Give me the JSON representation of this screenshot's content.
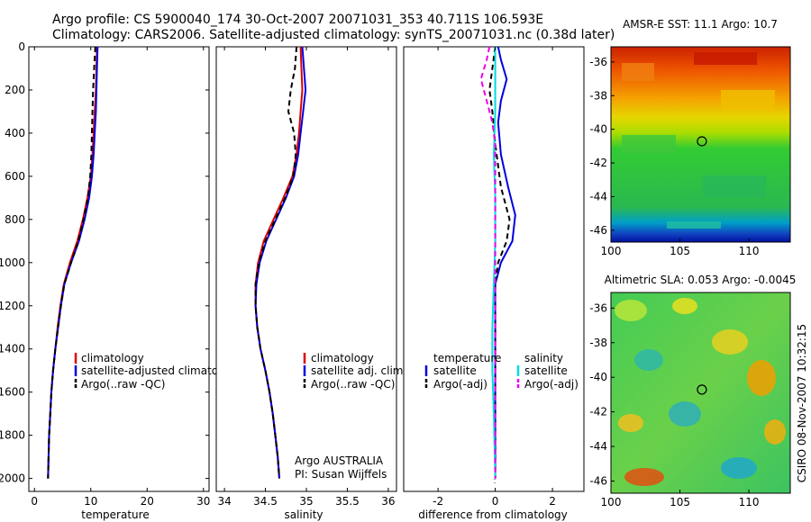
{
  "header": {
    "line1": "Argo profile: CS 5900040_174 30-Oct-2007 20071031_353 40.711S 106.593E",
    "line2": "Climatology: CARS2006. Satellite-adjusted climatology: synTS_20071031.nc (0.38d later)"
  },
  "depth_axis": {
    "ticks": [
      "0",
      "200",
      "400",
      "600",
      "800",
      "1000",
      "1200",
      "1400",
      "1600",
      "1800",
      "2000"
    ],
    "ylim": [
      0,
      2060
    ]
  },
  "chart_data": [
    {
      "id": "temperature",
      "type": "line",
      "xlabel": "temperature",
      "ylabel": "depth",
      "xlim": [
        -1,
        31
      ],
      "ylim": [
        2060,
        0
      ],
      "xticks": [
        "0",
        "10",
        "20",
        "30"
      ],
      "xtick_values": [
        0,
        10,
        20,
        30
      ],
      "legend": [
        "climatology",
        "satellite-adjusted climatology",
        "Argo(..raw -QC)"
      ],
      "legend_position": "lower-right",
      "series": [
        {
          "name": "climatology",
          "color": "#dd0000",
          "dash": "solid",
          "points": [
            [
              11.1,
              0
            ],
            [
              11.0,
              100
            ],
            [
              10.9,
              200
            ],
            [
              10.7,
              300
            ],
            [
              10.5,
              400
            ],
            [
              10.3,
              500
            ],
            [
              10.0,
              600
            ],
            [
              9.4,
              700
            ],
            [
              8.6,
              800
            ],
            [
              7.6,
              900
            ],
            [
              6.3,
              1000
            ],
            [
              5.2,
              1100
            ],
            [
              4.6,
              1200
            ],
            [
              4.1,
              1300
            ],
            [
              3.7,
              1400
            ],
            [
              3.3,
              1500
            ],
            [
              3.0,
              1600
            ],
            [
              2.8,
              1700
            ],
            [
              2.6,
              1800
            ],
            [
              2.5,
              1900
            ],
            [
              2.4,
              2000
            ]
          ]
        },
        {
          "name": "satellite-adjusted climatology",
          "color": "#0000dd",
          "dash": "solid",
          "points": [
            [
              11.2,
              0
            ],
            [
              11.1,
              100
            ],
            [
              11.0,
              200
            ],
            [
              10.9,
              300
            ],
            [
              10.7,
              400
            ],
            [
              10.5,
              500
            ],
            [
              10.2,
              600
            ],
            [
              9.7,
              700
            ],
            [
              8.9,
              800
            ],
            [
              7.9,
              900
            ],
            [
              6.5,
              1000
            ],
            [
              5.3,
              1100
            ],
            [
              4.7,
              1200
            ],
            [
              4.2,
              1300
            ],
            [
              3.7,
              1400
            ],
            [
              3.3,
              1500
            ],
            [
              3.0,
              1600
            ],
            [
              2.8,
              1700
            ],
            [
              2.6,
              1800
            ],
            [
              2.5,
              1900
            ],
            [
              2.4,
              2000
            ]
          ]
        },
        {
          "name": "Argo(..raw -QC)",
          "color": "#000000",
          "dash": "dashed",
          "points": [
            [
              10.8,
              0
            ],
            [
              10.6,
              100
            ],
            [
              10.4,
              200
            ],
            [
              10.3,
              300
            ],
            [
              10.2,
              400
            ],
            [
              10.1,
              500
            ],
            [
              9.9,
              600
            ],
            [
              9.5,
              700
            ],
            [
              8.7,
              800
            ],
            [
              7.8,
              900
            ],
            [
              6.5,
              1000
            ],
            [
              5.3,
              1100
            ],
            [
              4.7,
              1200
            ],
            [
              4.2,
              1300
            ],
            [
              3.7,
              1400
            ],
            [
              3.3,
              1500
            ],
            [
              3.0,
              1600
            ],
            [
              2.8,
              1700
            ],
            [
              2.6,
              1800
            ],
            [
              2.5,
              1900
            ],
            [
              2.4,
              2000
            ]
          ]
        }
      ]
    },
    {
      "id": "salinity",
      "type": "line",
      "xlabel": "salinity",
      "ylabel": "depth",
      "xlim": [
        33.9,
        36.1
      ],
      "ylim": [
        2060,
        0
      ],
      "xticks": [
        "34",
        "34.5",
        "35",
        "35.5",
        "36"
      ],
      "xtick_values": [
        34,
        34.5,
        35,
        35.5,
        36
      ],
      "legend": [
        "climatology",
        "satellite adj. clim.",
        "Argo(..raw -QC)"
      ],
      "legend_position": "lower-right",
      "annotation": {
        "line1": "Argo AUSTRALIA",
        "line2": "PI: Susan Wijffels"
      },
      "series": [
        {
          "name": "climatology",
          "color": "#dd0000",
          "dash": "solid",
          "points": [
            [
              34.93,
              0
            ],
            [
              34.94,
              100
            ],
            [
              34.95,
              200
            ],
            [
              34.93,
              300
            ],
            [
              34.91,
              400
            ],
            [
              34.88,
              500
            ],
            [
              34.83,
              600
            ],
            [
              34.72,
              700
            ],
            [
              34.6,
              800
            ],
            [
              34.48,
              900
            ],
            [
              34.41,
              1000
            ],
            [
              34.38,
              1100
            ],
            [
              34.38,
              1200
            ],
            [
              34.4,
              1300
            ],
            [
              34.44,
              1400
            ],
            [
              34.5,
              1500
            ],
            [
              34.55,
              1600
            ],
            [
              34.59,
              1700
            ],
            [
              34.62,
              1800
            ],
            [
              34.65,
              1900
            ],
            [
              34.67,
              2000
            ]
          ]
        },
        {
          "name": "satellite adj. clim.",
          "color": "#0000dd",
          "dash": "solid",
          "points": [
            [
              34.95,
              0
            ],
            [
              34.97,
              100
            ],
            [
              34.99,
              200
            ],
            [
              34.96,
              300
            ],
            [
              34.93,
              400
            ],
            [
              34.9,
              500
            ],
            [
              34.85,
              600
            ],
            [
              34.75,
              700
            ],
            [
              34.63,
              800
            ],
            [
              34.51,
              900
            ],
            [
              34.43,
              1000
            ],
            [
              34.39,
              1100
            ],
            [
              34.38,
              1200
            ],
            [
              34.4,
              1300
            ],
            [
              34.44,
              1400
            ],
            [
              34.5,
              1500
            ],
            [
              34.55,
              1600
            ],
            [
              34.59,
              1700
            ],
            [
              34.62,
              1800
            ],
            [
              34.65,
              1900
            ],
            [
              34.67,
              2000
            ]
          ]
        },
        {
          "name": "Argo(..raw -QC)",
          "color": "#000000",
          "dash": "dashed",
          "points": [
            [
              34.88,
              0
            ],
            [
              34.86,
              100
            ],
            [
              34.81,
              200
            ],
            [
              34.78,
              300
            ],
            [
              34.85,
              400
            ],
            [
              34.87,
              500
            ],
            [
              34.84,
              600
            ],
            [
              34.74,
              700
            ],
            [
              34.62,
              800
            ],
            [
              34.5,
              900
            ],
            [
              34.42,
              1000
            ],
            [
              34.38,
              1100
            ],
            [
              34.38,
              1200
            ],
            [
              34.4,
              1300
            ],
            [
              34.44,
              1400
            ],
            [
              34.5,
              1500
            ],
            [
              34.55,
              1600
            ],
            [
              34.59,
              1700
            ],
            [
              34.62,
              1800
            ],
            [
              34.65,
              1900
            ],
            [
              34.67,
              2000
            ]
          ]
        }
      ]
    },
    {
      "id": "difference",
      "type": "line",
      "xlabel": "difference from climatology",
      "ylabel": "depth",
      "xlim": [
        -3.2,
        3.1
      ],
      "ylim": [
        2060,
        0
      ],
      "xticks": [
        "-2",
        "0",
        "2"
      ],
      "xtick_values": [
        -2,
        0,
        2
      ],
      "legend_left_title": "temperature",
      "legend_left": [
        "satellite",
        "Argo(-adj)"
      ],
      "legend_right_title": "salinity",
      "legend_right": [
        "satellite",
        "Argo(-adj)"
      ],
      "series": [
        {
          "name": "temperature satellite",
          "color": "#0000dd",
          "dash": "solid",
          "points": [
            [
              0.1,
              0
            ],
            [
              0.2,
              60
            ],
            [
              0.4,
              150
            ],
            [
              0.2,
              250
            ],
            [
              0.1,
              350
            ],
            [
              0.2,
              500
            ],
            [
              0.45,
              650
            ],
            [
              0.7,
              780
            ],
            [
              0.6,
              900
            ],
            [
              0.2,
              1000
            ],
            [
              0.0,
              1100
            ],
            [
              0.0,
              1250
            ],
            [
              0.0,
              1500
            ],
            [
              0.0,
              1800
            ],
            [
              0.0,
              2000
            ]
          ]
        },
        {
          "name": "temperature Argo(-adj)",
          "color": "#000000",
          "dash": "dashed",
          "points": [
            [
              0.0,
              0
            ],
            [
              -0.1,
              100
            ],
            [
              -0.2,
              200
            ],
            [
              -0.1,
              300
            ],
            [
              0.0,
              450
            ],
            [
              0.2,
              650
            ],
            [
              0.5,
              800
            ],
            [
              0.4,
              900
            ],
            [
              0.1,
              1000
            ],
            [
              0.0,
              1100
            ],
            [
              0.0,
              1500
            ],
            [
              0.0,
              2000
            ]
          ]
        },
        {
          "name": "salinity satellite",
          "color": "#00dddd",
          "dash": "solid",
          "points": [
            [
              0.0,
              0
            ],
            [
              0.0,
              100
            ],
            [
              0.0,
              200
            ],
            [
              0.0,
              300
            ],
            [
              -0.05,
              500
            ],
            [
              0.0,
              700
            ],
            [
              0.0,
              900
            ],
            [
              -0.05,
              1100
            ],
            [
              -0.1,
              1300
            ],
            [
              -0.1,
              1500
            ],
            [
              -0.05,
              1700
            ],
            [
              0.0,
              2000
            ]
          ]
        },
        {
          "name": "salinity Argo(-adj)",
          "color": "#ee00ee",
          "dash": "dashed",
          "points": [
            [
              -0.2,
              0
            ],
            [
              -0.3,
              60
            ],
            [
              -0.5,
              150
            ],
            [
              -0.3,
              250
            ],
            [
              -0.1,
              350
            ],
            [
              0.0,
              450
            ],
            [
              0.0,
              600
            ],
            [
              0.0,
              2000
            ]
          ]
        }
      ]
    },
    {
      "id": "sst_map",
      "type": "heatmap",
      "title": "AMSR-E SST: 11.1 Argo: 10.7",
      "xlim": [
        100,
        113
      ],
      "ylim": [
        -46.7,
        -35.1
      ],
      "xticks": [
        "100",
        "105",
        "110"
      ],
      "xtick_values": [
        100,
        105,
        110
      ],
      "yticks": [
        "-36",
        "-38",
        "-40",
        "-42",
        "-44",
        "-46"
      ],
      "ytick_values": [
        -36,
        -38,
        -40,
        -42,
        -44,
        -46
      ],
      "marker": {
        "lon": 106.593,
        "lat": -40.711
      }
    },
    {
      "id": "sla_map",
      "type": "heatmap",
      "title": "Altimetric SLA: 0.053 Argo: -0.0045",
      "xlim": [
        100,
        113
      ],
      "ylim": [
        -46.7,
        -35.1
      ],
      "xticks": [
        "100",
        "105",
        "110"
      ],
      "xtick_values": [
        100,
        105,
        110
      ],
      "yticks": [
        "-36",
        "-38",
        "-40",
        "-42",
        "-44",
        "-46"
      ],
      "ytick_values": [
        -36,
        -38,
        -40,
        -42,
        -44,
        -46
      ],
      "marker": {
        "lon": 106.593,
        "lat": -40.711
      }
    }
  ],
  "footer": {
    "vertical_stamp": "CSIRO 08-Nov-2007 10:32:15"
  }
}
